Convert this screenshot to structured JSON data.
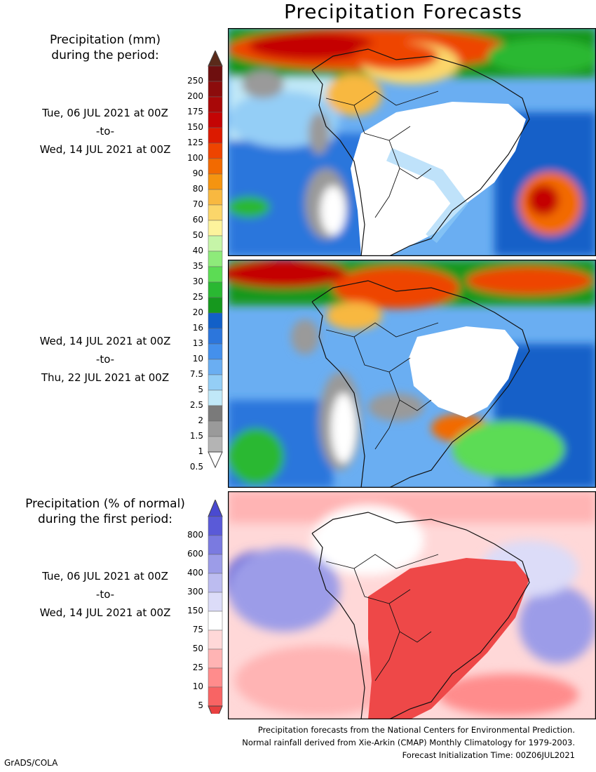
{
  "title": "Precipitation Forecasts",
  "mm_legend": {
    "header_line1": "Precipitation (mm)",
    "header_line2": "during the period:",
    "levels": [
      "250",
      "200",
      "175",
      "150",
      "125",
      "100",
      "90",
      "80",
      "70",
      "60",
      "50",
      "40",
      "35",
      "30",
      "25",
      "20",
      "16",
      "13",
      "10",
      "7.5",
      "5",
      "2.5",
      "2",
      "1.5",
      "1",
      "0.5"
    ],
    "colors": [
      "#6e0f0f",
      "#8c0c0c",
      "#a80808",
      "#c40404",
      "#dc1a00",
      "#ee4400",
      "#f26a00",
      "#f59410",
      "#f8b840",
      "#fbd66a",
      "#fdf39c",
      "#c6f5a8",
      "#8eeb7a",
      "#5cdc54",
      "#2ab832",
      "#16981e",
      "#1260c8",
      "#2c76dc",
      "#4490ec",
      "#6aaef2",
      "#94cef6",
      "#c0e8f8",
      "#7a7a7a",
      "#9a9a9a",
      "#b4b4b4",
      "#cccccc"
    ]
  },
  "period1": {
    "start": "Tue, 06 JUL 2021 at 00Z",
    "sep": "-to-",
    "end": "Wed, 14 JUL 2021 at 00Z"
  },
  "period2": {
    "start": "Wed, 14 JUL 2021 at 00Z",
    "sep": "-to-",
    "end": "Thu, 22 JUL 2021 at 00Z"
  },
  "pct_legend": {
    "header_line1": "Precipitation (% of normal)",
    "header_line2": "during the first period:",
    "levels": [
      "800",
      "600",
      "400",
      "300",
      "150",
      "75",
      "50",
      "25",
      "10",
      "5"
    ],
    "colors": [
      "#5a5ad8",
      "#7a7ae0",
      "#9c9ce8",
      "#bcbcf0",
      "#dcdcf8",
      "#ffffff",
      "#ffd8d8",
      "#ffb4b4",
      "#ff8c8c",
      "#f86464",
      "#ee4848"
    ]
  },
  "period3": {
    "start": "Tue, 06 JUL 2021 at 00Z",
    "sep": "-to-",
    "end": "Wed, 14 JUL 2021 at 00Z"
  },
  "footer": {
    "line1": "Precipitation forecasts from the National Centers for Environmental Prediction.",
    "line2": "Normal rainfall derived from Xie-Arkin (CMAP) Monthly Climatology for 1979-2003.",
    "line3": "Forecast Initialization Time: 00Z06JUL2021"
  },
  "credit": "GrADS/COLA"
}
